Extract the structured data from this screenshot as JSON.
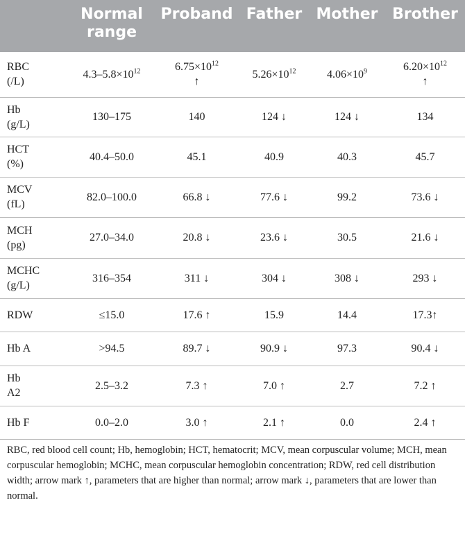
{
  "table": {
    "columns": [
      "Normal range",
      "Proband",
      "Father",
      "Mother",
      "Brother"
    ],
    "rows": [
      {
        "label": [
          "RBC",
          "(/L)"
        ],
        "cells": [
          {
            "base": "4.3–5.8×10",
            "sup": "12"
          },
          {
            "base": "6.75×10",
            "sup": "12",
            "arrow": "↑"
          },
          {
            "base": "5.26×10",
            "sup": "12"
          },
          {
            "base": "4.06×10",
            "sup": "9"
          },
          {
            "base": "6.20×10",
            "sup": "12",
            "arrow": "↑"
          }
        ]
      },
      {
        "label": [
          "Hb",
          "(g/L)"
        ],
        "cells": [
          "130–175",
          "140",
          "124 ↓",
          "124 ↓",
          "134"
        ]
      },
      {
        "label": [
          "HCT",
          "(%)"
        ],
        "cells": [
          "40.4–50.0",
          "45.1",
          "40.9",
          "40.3",
          "45.7"
        ]
      },
      {
        "label": [
          "MCV",
          "(fL)"
        ],
        "cells": [
          "82.0–100.0",
          "66.8 ↓",
          "77.6 ↓",
          "99.2",
          "73.6 ↓"
        ]
      },
      {
        "label": [
          "MCH",
          "(pg)"
        ],
        "cells": [
          "27.0–34.0",
          "20.8 ↓",
          "23.6 ↓",
          "30.5",
          "21.6 ↓"
        ]
      },
      {
        "label": [
          "MCHC",
          "(g/L)"
        ],
        "cells": [
          "316–354",
          "311 ↓",
          "304 ↓",
          "308 ↓",
          "293 ↓"
        ]
      },
      {
        "label": [
          "RDW"
        ],
        "cells": [
          "≤15.0",
          "17.6 ↑",
          "15.9",
          "14.4",
          "17.3↑"
        ]
      },
      {
        "label": [
          "Hb A"
        ],
        "cells": [
          ">94.5",
          "89.7 ↓",
          "90.9 ↓",
          "97.3",
          "90.4 ↓"
        ]
      },
      {
        "label": [
          "Hb",
          "A2"
        ],
        "cells": [
          "2.5–3.2",
          "7.3 ↑",
          "7.0 ↑",
          "2.7",
          "7.2 ↑"
        ]
      },
      {
        "label": [
          "Hb F"
        ],
        "cells": [
          "0.0–2.0",
          "3.0 ↑",
          "2.1 ↑",
          "0.0",
          "2.4 ↑"
        ]
      }
    ],
    "footnote": "RBC, red blood cell count; Hb, hemoglobin; HCT, hematocrit; MCV, mean corpuscular volume; MCH, mean corpuscular hemoglobin; MCHC, mean corpuscular hemoglobin concentration; RDW, red cell distribution width; arrow mark ↑, parameters that are higher than normal; arrow mark ↓, parameters that are lower than normal."
  }
}
